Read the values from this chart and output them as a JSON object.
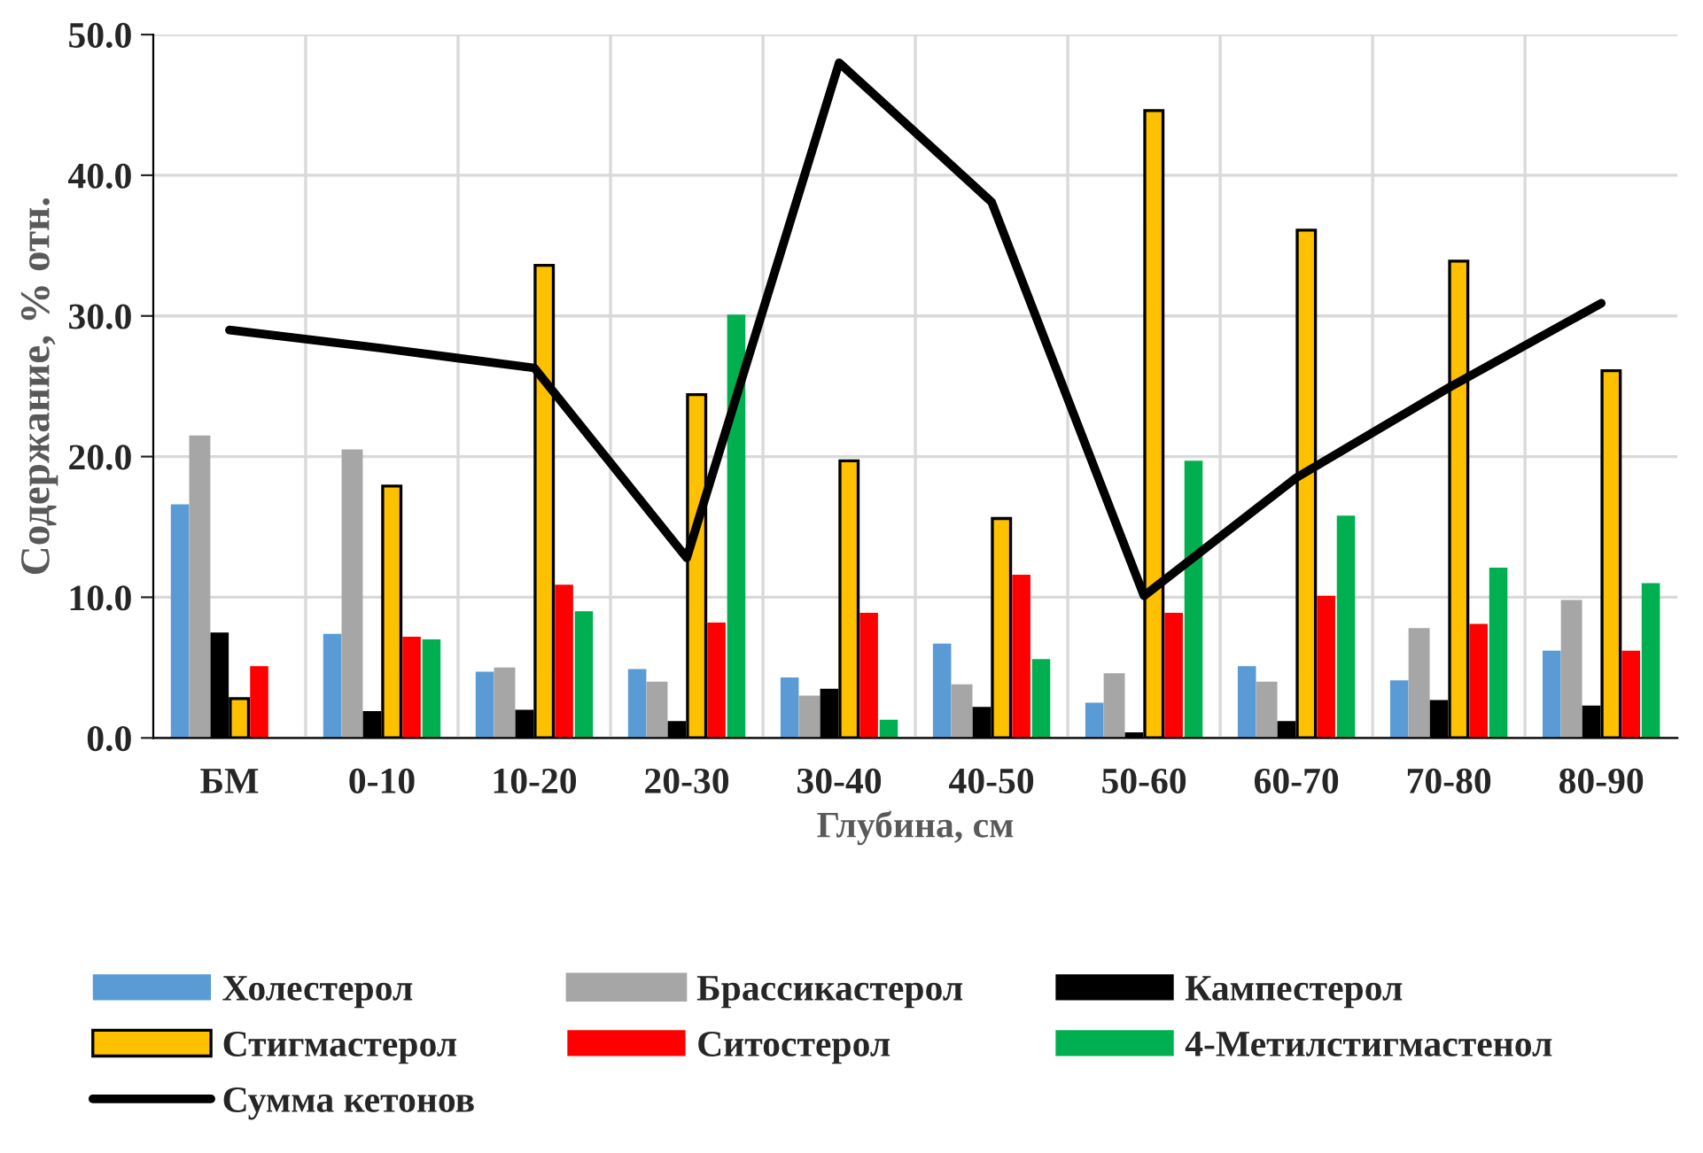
{
  "chart_data": {
    "type": "bar",
    "xlabel": "Глубина, см",
    "ylabel": "Содержание, % отн.",
    "categories": [
      "БМ",
      "0-10",
      "10-20",
      "20-30",
      "30-40",
      "40-50",
      "50-60",
      "60-70",
      "70-80",
      "80-90"
    ],
    "series": [
      {
        "name": "Холестерол",
        "color": "#5b9bd5",
        "values": [
          16.6,
          7.4,
          4.7,
          4.9,
          4.3,
          6.7,
          2.5,
          5.1,
          4.1,
          6.2
        ]
      },
      {
        "name": "Брассикастерол",
        "color": "#a6a6a6",
        "values": [
          21.4,
          20.4,
          4.9,
          3.9,
          2.9,
          3.7,
          4.5,
          3.9,
          7.7,
          9.7
        ]
      },
      {
        "name": "Кампестерол",
        "color": "#000000",
        "values": [
          7.5,
          1.9,
          2.0,
          1.2,
          3.5,
          2.2,
          0.4,
          1.2,
          2.7,
          2.3
        ]
      },
      {
        "name": "Стигмастерол",
        "color": "#ffc000",
        "values": [
          2.8,
          17.9,
          33.6,
          24.4,
          19.7,
          15.6,
          44.6,
          36.1,
          33.9,
          26.1
        ]
      },
      {
        "name": "Ситостерол",
        "color": "#ff0000",
        "values": [
          5.1,
          7.2,
          10.9,
          8.2,
          8.9,
          11.6,
          8.9,
          10.1,
          8.1,
          6.2
        ]
      },
      {
        "name": "4-Метилстигмастенол",
        "color": "#00b050",
        "values": [
          null,
          7.0,
          9.0,
          30.1,
          1.3,
          5.6,
          19.7,
          15.8,
          12.1,
          11.0
        ]
      },
      {
        "name": "Сумма кетонов",
        "type": "line",
        "color": "#000000",
        "values": [
          29.0,
          27.7,
          26.3,
          12.8,
          48.0,
          38.1,
          10.1,
          18.5,
          24.9,
          30.9
        ]
      }
    ],
    "ylim": [
      0,
      50
    ],
    "yticks": [
      {
        "value": 0,
        "label": "0.0"
      },
      {
        "value": 10,
        "label": "10.0"
      },
      {
        "value": 20,
        "label": "20.0"
      },
      {
        "value": 30,
        "label": "30.0"
      },
      {
        "value": 40,
        "label": "40.0"
      },
      {
        "value": 50,
        "label": "50.0"
      }
    ],
    "grid": true,
    "legend": "bottom",
    "marker": "none",
    "line_style": "solid"
  }
}
